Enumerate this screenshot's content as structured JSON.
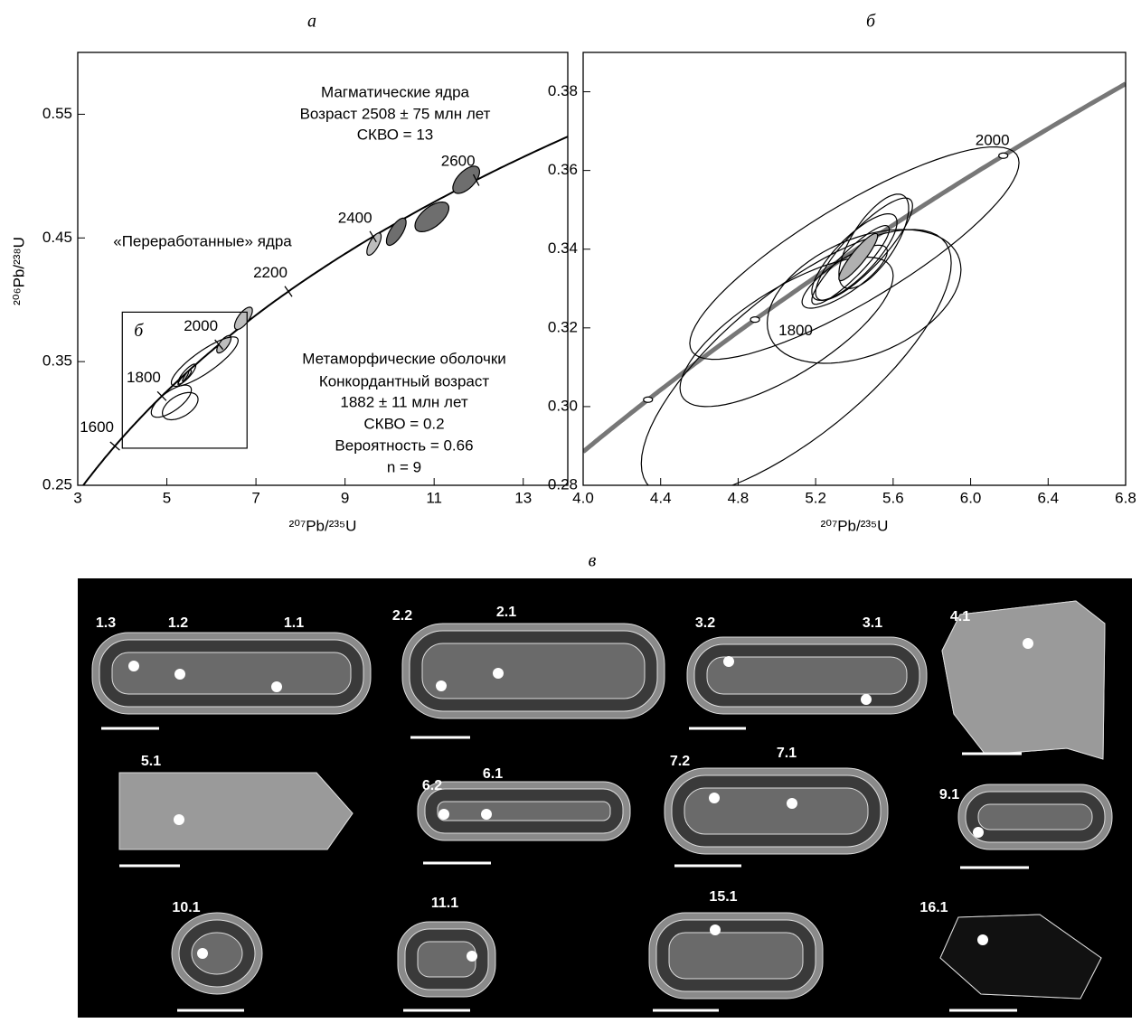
{
  "chart_data": [
    {
      "type": "concordia",
      "panel_label": "а",
      "x_label": "²⁰⁷Pb/²³⁵U",
      "y_label": "²⁰⁶Pb/²³⁸U",
      "xlim": [
        3,
        14
      ],
      "ylim": [
        0.25,
        0.6
      ],
      "xticks": [
        3,
        5,
        7,
        9,
        11,
        13
      ],
      "yticks": [
        0.25,
        0.35,
        0.45,
        0.55
      ],
      "concordia_color": "#000000",
      "concordia_width": 2,
      "age_ticks": [
        1600,
        1800,
        2000,
        2200,
        2400,
        2600
      ],
      "age_labeled": [
        true,
        true,
        true,
        true,
        true,
        true
      ],
      "inset_label": "б",
      "annotations": [
        "Магматические ядра",
        "Возраст 2508 ± 75 млн лет",
        "СКВО = 13",
        "«Переработанные» ядра",
        "Метаморфические оболочки",
        "Конкордантный возраст",
        "1882 ± 11 млн лет",
        "СКВО = 0.2",
        "Вероятность = 0.66",
        "n = 9"
      ],
      "ellipses": [
        {
          "x": 11.72,
          "y": 0.497,
          "x_err": 0.3,
          "y_err": 0.011,
          "rho": 0.6,
          "fill": "#6e6e6e"
        },
        {
          "x": 10.95,
          "y": 0.467,
          "x_err": 0.38,
          "y_err": 0.012,
          "rho": 0.6,
          "fill": "#6e6e6e"
        },
        {
          "x": 10.15,
          "y": 0.455,
          "x_err": 0.22,
          "y_err": 0.011,
          "rho": 0.7,
          "fill": "#6e6e6e"
        },
        {
          "x": 9.65,
          "y": 0.445,
          "x_err": 0.16,
          "y_err": 0.009,
          "rho": 0.7,
          "fill": "#bdbdbd"
        },
        {
          "x": 6.72,
          "y": 0.385,
          "x_err": 0.2,
          "y_err": 0.009,
          "rho": 0.7,
          "fill": "#bdbdbd"
        },
        {
          "x": 6.28,
          "y": 0.364,
          "x_err": 0.16,
          "y_err": 0.007,
          "rho": 0.7,
          "fill": "#bdbdbd"
        },
        {
          "x": 5.85,
          "y": 0.35,
          "x_err": 0.75,
          "y_err": 0.02,
          "rho": 0.85,
          "fill": "none"
        },
        {
          "x": 5.1,
          "y": 0.318,
          "x_err": 0.45,
          "y_err": 0.013,
          "rho": 0.7,
          "fill": "none"
        },
        {
          "x": 5.3,
          "y": 0.314,
          "x_err": 0.4,
          "y_err": 0.011,
          "rho": 0.5,
          "fill": "none"
        },
        {
          "x": 5.45,
          "y": 0.34,
          "x_err": 0.2,
          "y_err": 0.008,
          "rho": 0.85,
          "fill": "none"
        },
        {
          "x": 5.4,
          "y": 0.337,
          "x_err": 0.15,
          "y_err": 0.006,
          "rho": 0.9,
          "fill": "none"
        },
        {
          "x": 5.42,
          "y": 0.338,
          "x_err": 0.07,
          "y_err": 0.004,
          "rho": 0.9,
          "fill": "#bdbdbd"
        }
      ]
    },
    {
      "type": "concordia",
      "panel_label": "б",
      "x_label": "²⁰⁷Pb/²³⁵U",
      "xlim": [
        4.0,
        6.8
      ],
      "ylim": [
        0.28,
        0.39
      ],
      "xticks": [
        {
          "value": 4,
          "label": "4.0"
        },
        4.4,
        4.8,
        5.2,
        5.6,
        {
          "value": 6,
          "label": "6.0"
        },
        6.4,
        6.8
      ],
      "yticks": [
        0.28,
        {
          "value": 0.3,
          "label": "0.30"
        },
        0.32,
        0.34,
        0.36,
        0.38
      ],
      "concordia_color": "#777777",
      "concordia_width": 5,
      "age_ticks": [
        1700,
        1800,
        2000
      ],
      "age_labeled": [
        false,
        true,
        true
      ],
      "ellipses": [
        {
          "x": 5.4,
          "y": 0.339,
          "x_err": 0.85,
          "y_err": 0.027,
          "rho": 0.85,
          "fill": "none"
        },
        {
          "x": 5.1,
          "y": 0.311,
          "x_err": 0.8,
          "y_err": 0.034,
          "rho": 0.75,
          "fill": "none"
        },
        {
          "x": 5.05,
          "y": 0.319,
          "x_err": 0.55,
          "y_err": 0.019,
          "rho": 0.75,
          "fill": "none"
        },
        {
          "x": 5.45,
          "y": 0.328,
          "x_err": 0.5,
          "y_err": 0.017,
          "rho": 0.4,
          "fill": "none"
        },
        {
          "x": 5.45,
          "y": 0.34,
          "x_err": 0.25,
          "y_err": 0.013,
          "rho": 0.85,
          "fill": "none"
        },
        {
          "x": 5.4,
          "y": 0.338,
          "x_err": 0.22,
          "y_err": 0.011,
          "rho": 0.8,
          "fill": "none"
        },
        {
          "x": 5.38,
          "y": 0.336,
          "x_err": 0.2,
          "y_err": 0.01,
          "rho": 0.9,
          "fill": "none"
        },
        {
          "x": 5.5,
          "y": 0.342,
          "x_err": 0.18,
          "y_err": 0.012,
          "rho": 0.7,
          "fill": "none"
        },
        {
          "x": 5.35,
          "y": 0.333,
          "x_err": 0.22,
          "y_err": 0.008,
          "rho": 0.8,
          "fill": "none"
        },
        {
          "x": 5.42,
          "y": 0.338,
          "x_err": 0.1,
          "y_err": 0.006,
          "rho": 0.9,
          "fill": "#b0b0b0"
        }
      ]
    }
  ],
  "cl_image": {
    "panel_label": "в",
    "grains": [
      {
        "spots": [
          "1.3",
          "1.2",
          "1.1"
        ]
      },
      {
        "spots": [
          "2.2",
          "2.1"
        ]
      },
      {
        "spots": [
          "3.2",
          "3.1"
        ]
      },
      {
        "spots": [
          "4.1"
        ]
      },
      {
        "spots": [
          "5.1"
        ]
      },
      {
        "spots": [
          "6.2",
          "6.1"
        ]
      },
      {
        "spots": [
          "7.2",
          "7.1"
        ]
      },
      {
        "spots": [
          "9.1"
        ]
      },
      {
        "spots": [
          "10.1"
        ]
      },
      {
        "spots": [
          "11.1"
        ]
      },
      {
        "spots": [
          "15.1"
        ]
      },
      {
        "spots": [
          "16.1"
        ]
      }
    ]
  }
}
